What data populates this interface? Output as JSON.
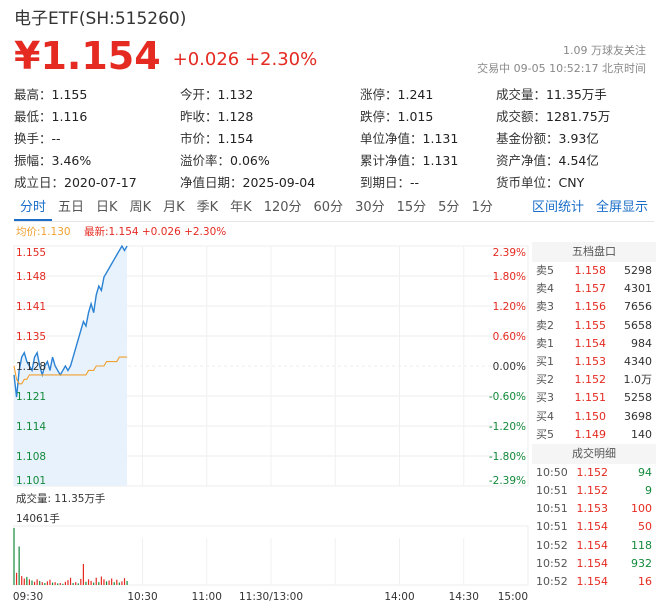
{
  "header": {
    "title": "电子ETF(SH:515260)",
    "price": "¥1.154",
    "change": "+0.026 +2.30%",
    "follow": "1.09 万球友关注",
    "status": "交易中 09-05 10:52:17 北京时间"
  },
  "stats": [
    [
      {
        "label": "最高：",
        "value": "1.155",
        "color": "red"
      },
      {
        "label": "今开：",
        "value": "1.132",
        "color": "red"
      },
      {
        "label": "涨停：",
        "value": "1.241",
        "color": "red"
      },
      {
        "label": "成交量：",
        "value": "11.35万手",
        "color": ""
      }
    ],
    [
      {
        "label": "最低：",
        "value": "1.116",
        "color": "green"
      },
      {
        "label": "昨收：",
        "value": "1.128",
        "color": ""
      },
      {
        "label": "跌停：",
        "value": "1.015",
        "color": "green"
      },
      {
        "label": "成交额：",
        "value": "1281.75万",
        "color": ""
      }
    ],
    [
      {
        "label": "换手：",
        "value": "--",
        "color": ""
      },
      {
        "label": "市价：",
        "value": "1.154",
        "color": ""
      },
      {
        "label": "单位净值：",
        "value": "1.131",
        "color": ""
      },
      {
        "label": "基金份额：",
        "value": "3.93亿",
        "color": ""
      }
    ],
    [
      {
        "label": "振幅：",
        "value": "3.46%",
        "color": ""
      },
      {
        "label": "溢价率：",
        "value": "0.06%",
        "color": ""
      },
      {
        "label": "累计净值：",
        "value": "1.131",
        "color": ""
      },
      {
        "label": "资产净值：",
        "value": "4.54亿",
        "color": ""
      }
    ],
    [
      {
        "label": "成立日：",
        "value": "2020-07-17",
        "color": ""
      },
      {
        "label": "净值日期：",
        "value": "2025-09-04",
        "color": ""
      },
      {
        "label": "到期日：",
        "value": "--",
        "color": ""
      },
      {
        "label": "货币单位：",
        "value": "CNY",
        "color": ""
      }
    ]
  ],
  "tabs": [
    "分时",
    "五日",
    "日K",
    "周K",
    "月K",
    "季K",
    "年K",
    "120分",
    "60分",
    "30分",
    "15分",
    "5分",
    "1分"
  ],
  "active_tab": 0,
  "tab_links": [
    "区间统计",
    "全屏显示"
  ],
  "legend": {
    "avg": "均价:1.130",
    "latest": "最新:1.154 +0.026 +2.30%"
  },
  "order_book": {
    "title": "五档盘口",
    "rows": [
      {
        "label": "卖5",
        "price": "1.158",
        "vol": "5298",
        "color": "red"
      },
      {
        "label": "卖4",
        "price": "1.157",
        "vol": "4301",
        "color": "red"
      },
      {
        "label": "卖3",
        "price": "1.156",
        "vol": "7656",
        "color": "red"
      },
      {
        "label": "卖2",
        "price": "1.155",
        "vol": "5658",
        "color": "red"
      },
      {
        "label": "卖1",
        "price": "1.154",
        "vol": "984",
        "color": "red"
      },
      {
        "label": "买1",
        "price": "1.153",
        "vol": "4340",
        "color": "red"
      },
      {
        "label": "买2",
        "price": "1.152",
        "vol": "1.0万",
        "color": "red"
      },
      {
        "label": "买3",
        "price": "1.151",
        "vol": "5258",
        "color": "red"
      },
      {
        "label": "买4",
        "price": "1.150",
        "vol": "3698",
        "color": "red"
      },
      {
        "label": "买5",
        "price": "1.149",
        "vol": "140",
        "color": "red"
      }
    ],
    "trades_title": "成交明细",
    "trades": [
      {
        "time": "10:50",
        "price": "1.152",
        "vol": "94",
        "color": "green"
      },
      {
        "time": "10:51",
        "price": "1.152",
        "vol": "9",
        "color": "green"
      },
      {
        "time": "10:51",
        "price": "1.153",
        "vol": "100",
        "color": "red"
      },
      {
        "time": "10:51",
        "price": "1.154",
        "vol": "50",
        "color": "red"
      },
      {
        "time": "10:52",
        "price": "1.154",
        "vol": "118",
        "color": "green"
      },
      {
        "time": "10:52",
        "price": "1.154",
        "vol": "932",
        "color": "green"
      },
      {
        "time": "10:52",
        "price": "1.154",
        "vol": "16",
        "color": "red"
      }
    ]
  },
  "chart_data": {
    "type": "line",
    "price_ticks": [
      "1.155",
      "1.148",
      "1.141",
      "1.135",
      "1.128",
      "1.121",
      "1.114",
      "1.108",
      "1.101"
    ],
    "pct_ticks": [
      "2.39%",
      "1.80%",
      "1.20%",
      "0.60%",
      "0.00%",
      "-0.60%",
      "-1.20%",
      "-1.80%",
      "-2.39%"
    ],
    "price_range": [
      1.101,
      1.155
    ],
    "prev_close": 1.128,
    "x_ticks": [
      "09:30",
      "10:30",
      "11:00",
      "11:30/13:00",
      "14:00",
      "14:30",
      "15:00"
    ],
    "price_series": [
      1.126,
      1.121,
      1.127,
      1.13,
      1.131,
      1.129,
      1.128,
      1.127,
      1.13,
      1.131,
      1.128,
      1.126,
      1.128,
      1.129,
      1.127,
      1.13,
      1.128,
      1.127,
      1.126,
      1.127,
      1.128,
      1.127,
      1.128,
      1.13,
      1.132,
      1.134,
      1.136,
      1.138,
      1.137,
      1.14,
      1.142,
      1.14,
      1.144,
      1.146,
      1.145,
      1.148,
      1.149,
      1.15,
      1.151,
      1.152,
      1.153,
      1.154,
      1.155,
      1.154,
      1.155
    ],
    "avg_series": [
      1.128,
      1.125,
      1.124,
      1.124,
      1.125,
      1.125,
      1.126,
      1.126,
      1.126,
      1.126,
      1.126,
      1.126,
      1.126,
      1.126,
      1.126,
      1.126,
      1.126,
      1.126,
      1.126,
      1.126,
      1.126,
      1.126,
      1.126,
      1.126,
      1.126,
      1.126,
      1.126,
      1.126,
      1.126,
      1.127,
      1.127,
      1.127,
      1.128,
      1.128,
      1.128,
      1.128,
      1.129,
      1.129,
      1.129,
      1.129,
      1.129,
      1.13,
      1.13,
      1.13,
      1.13
    ],
    "volume_label": "成交量: 11.35万手",
    "volume_max_label": "14061手",
    "volume_series": [
      14061,
      3000,
      9500,
      2200,
      1600,
      2000,
      1400,
      1100,
      800,
      1400,
      1000,
      700,
      500,
      900,
      1300,
      600,
      700,
      400,
      500,
      300,
      800,
      1200,
      1800,
      500,
      700,
      400,
      1500,
      5200,
      800,
      1400,
      1000,
      600,
      1800,
      700,
      2100,
      1400,
      900,
      1100,
      1600,
      700,
      1300,
      600,
      900,
      1700,
      1000
    ],
    "volume_colors": [
      "green",
      "red",
      "green",
      "red",
      "red",
      "green",
      "red",
      "green",
      "red",
      "red",
      "green",
      "red",
      "green",
      "red",
      "red",
      "green",
      "red",
      "green",
      "red",
      "green",
      "red",
      "red",
      "red",
      "green",
      "red",
      "green",
      "red",
      "red",
      "green",
      "red",
      "red",
      "green",
      "red",
      "green",
      "red",
      "red",
      "green",
      "red",
      "red",
      "green",
      "red",
      "green",
      "red",
      "red",
      "green"
    ]
  }
}
